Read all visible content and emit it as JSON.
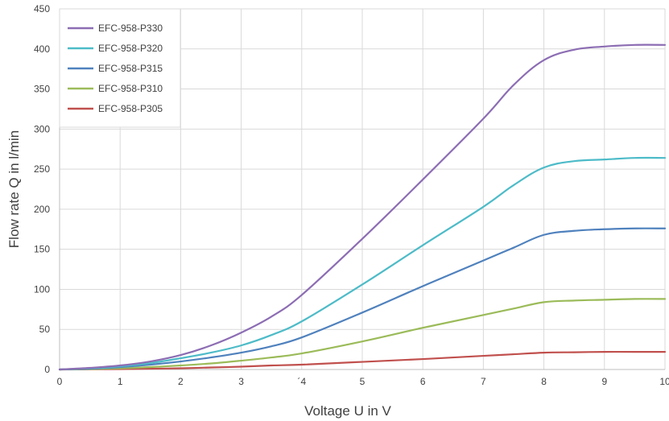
{
  "chart_data": {
    "type": "line",
    "xlabel": "Voltage U in V",
    "ylabel": "Flow rate Q in l/min",
    "xlim": [
      0,
      10
    ],
    "ylim": [
      0,
      450
    ],
    "x_ticks": [
      0,
      1,
      2,
      3,
      4,
      5,
      6,
      7,
      8,
      9,
      10
    ],
    "x_tick_labels": [
      "0",
      "1",
      "2",
      "3",
      "´4",
      "5",
      "6",
      "7",
      "8",
      "9",
      "10"
    ],
    "y_ticks": [
      0,
      50,
      100,
      150,
      200,
      250,
      300,
      350,
      400,
      450
    ],
    "y_tick_labels": [
      "0",
      "50",
      "100",
      "150",
      "200",
      "250",
      "300",
      "350",
      "400",
      "450"
    ],
    "grid": true,
    "legend_position": "top-left",
    "x": [
      0,
      0.5,
      1,
      1.5,
      2,
      2.5,
      3,
      3.5,
      4,
      5,
      6,
      7,
      7.5,
      8,
      8.5,
      9,
      9.5,
      10
    ],
    "series": [
      {
        "name": "EFC-958-P330",
        "color": "#8c6db3",
        "values": [
          0,
          2,
          5,
          10,
          18,
          30,
          46,
          66,
          93,
          163,
          237,
          313,
          355,
          386,
          399,
          403,
          405,
          405
        ]
      },
      {
        "name": "EFC-958-P320",
        "color": "#4dbbc8",
        "values": [
          0,
          1.5,
          4,
          8,
          14,
          21,
          30,
          43,
          60,
          106,
          155,
          203,
          230,
          252,
          260,
          262,
          264,
          264
        ]
      },
      {
        "name": "EFC-958-P315",
        "color": "#4f81bd",
        "values": [
          0,
          1,
          3,
          6,
          10,
          15,
          21,
          29,
          40,
          71,
          104,
          136,
          152,
          168,
          173,
          175,
          176,
          176
        ]
      },
      {
        "name": "EFC-958-P310",
        "color": "#9bbb59",
        "values": [
          0,
          0.5,
          1.5,
          3,
          5,
          7.5,
          11,
          15,
          20,
          35,
          52,
          68,
          76,
          84,
          86,
          87,
          88,
          88
        ]
      },
      {
        "name": "EFC-958-P305",
        "color": "#c0504d",
        "values": [
          0,
          0.2,
          0.5,
          1,
          1.5,
          2.5,
          3.5,
          5,
          6,
          9.5,
          13,
          17,
          19,
          21,
          21.5,
          22,
          22,
          22
        ]
      }
    ]
  }
}
